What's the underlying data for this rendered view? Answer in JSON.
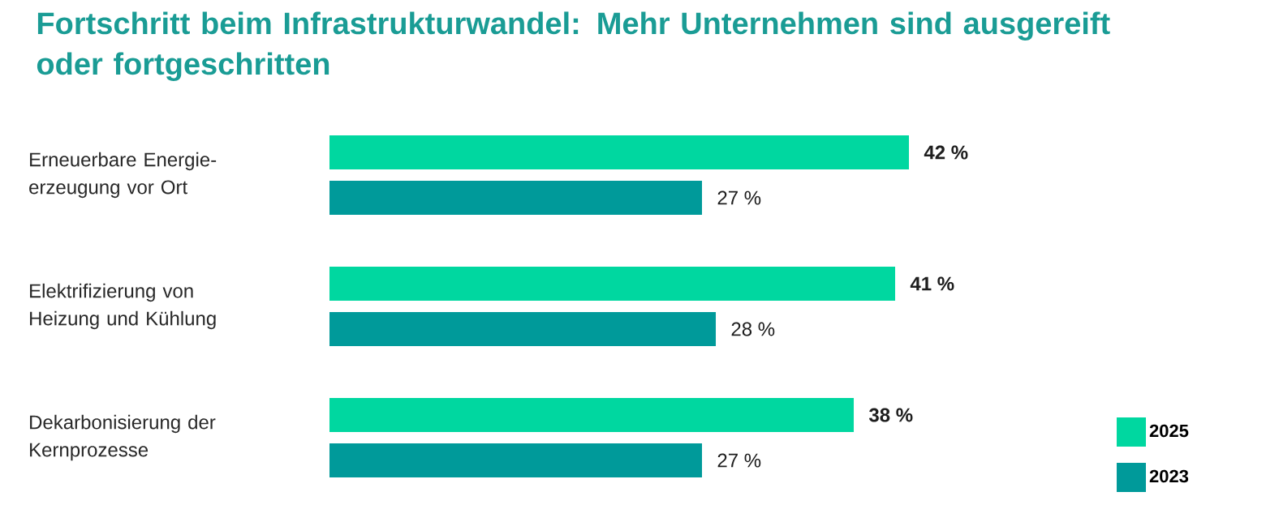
{
  "chart_data": {
    "type": "bar",
    "orientation": "horizontal",
    "title": "Fortschritt beim Infrastrukturwandel: Mehr Unternehmen sind ausgereift oder fortgeschritten",
    "categories": [
      "Erneuerbare Energie-erzeugung vor Ort",
      "Elektrifizierung von Heizung und Kühlung",
      "Dekarbonisierung der Kernprozesse"
    ],
    "series": [
      {
        "name": "2025",
        "color": "#00d7a0",
        "values": [
          42,
          41,
          38
        ],
        "value_labels": [
          "42 %",
          "41 %",
          "38 %"
        ]
      },
      {
        "name": "2023",
        "color": "#009a9a",
        "values": [
          27,
          28,
          27
        ],
        "value_labels": [
          "27 %",
          "28 %",
          "27 %"
        ]
      }
    ],
    "legend": "bottom right"
  }
}
